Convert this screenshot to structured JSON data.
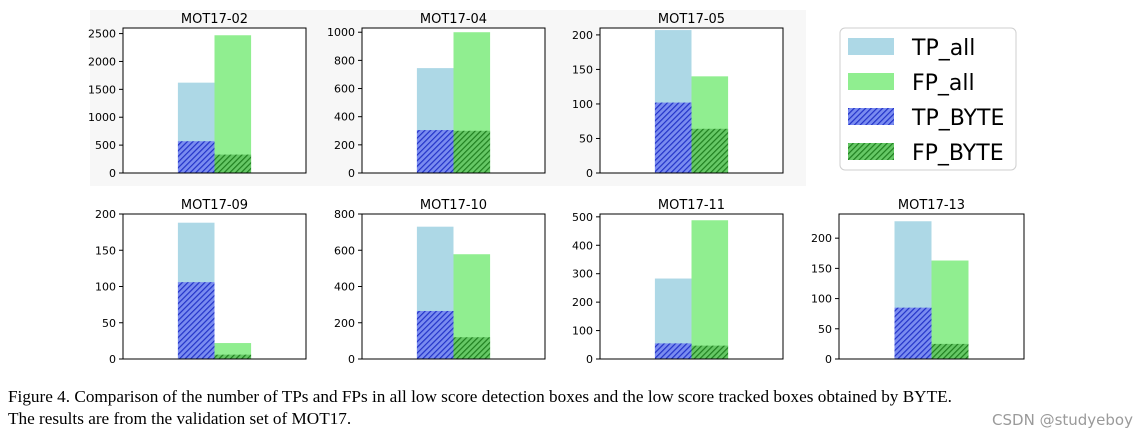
{
  "chart_data": [
    {
      "type": "bar",
      "title": "MOT17-02",
      "ylim": [
        0,
        2600
      ],
      "yticks": [
        0,
        500,
        1000,
        1500,
        2000,
        2500
      ],
      "series": [
        {
          "name": "TP_all",
          "values": [
            1620
          ]
        },
        {
          "name": "FP_all",
          "values": [
            2470
          ]
        },
        {
          "name": "TP_BYTE",
          "values": [
            570
          ]
        },
        {
          "name": "FP_BYTE",
          "values": [
            330
          ]
        }
      ]
    },
    {
      "type": "bar",
      "title": "MOT17-04",
      "ylim": [
        0,
        1030
      ],
      "yticks": [
        0,
        200,
        400,
        600,
        800,
        1000
      ],
      "series": [
        {
          "name": "TP_all",
          "values": [
            745
          ]
        },
        {
          "name": "FP_all",
          "values": [
            1000
          ]
        },
        {
          "name": "TP_BYTE",
          "values": [
            305
          ]
        },
        {
          "name": "FP_BYTE",
          "values": [
            300
          ]
        }
      ]
    },
    {
      "type": "bar",
      "title": "MOT17-05",
      "ylim": [
        0,
        210
      ],
      "yticks": [
        0,
        50,
        100,
        150,
        200
      ],
      "series": [
        {
          "name": "TP_all",
          "values": [
            207
          ]
        },
        {
          "name": "FP_all",
          "values": [
            140
          ]
        },
        {
          "name": "TP_BYTE",
          "values": [
            102
          ]
        },
        {
          "name": "FP_BYTE",
          "values": [
            64
          ]
        }
      ]
    },
    {
      "type": "bar",
      "title": "MOT17-09",
      "ylim": [
        0,
        200
      ],
      "yticks": [
        0,
        50,
        100,
        150,
        200
      ],
      "series": [
        {
          "name": "TP_all",
          "values": [
            188
          ]
        },
        {
          "name": "FP_all",
          "values": [
            22
          ]
        },
        {
          "name": "TP_BYTE",
          "values": [
            106
          ]
        },
        {
          "name": "FP_BYTE",
          "values": [
            6
          ]
        }
      ]
    },
    {
      "type": "bar",
      "title": "MOT17-10",
      "ylim": [
        0,
        800
      ],
      "yticks": [
        0,
        200,
        400,
        600,
        800
      ],
      "series": [
        {
          "name": "TP_all",
          "values": [
            730
          ]
        },
        {
          "name": "FP_all",
          "values": [
            578
          ]
        },
        {
          "name": "TP_BYTE",
          "values": [
            265
          ]
        },
        {
          "name": "FP_BYTE",
          "values": [
            120
          ]
        }
      ]
    },
    {
      "type": "bar",
      "title": "MOT17-11",
      "ylim": [
        0,
        510
      ],
      "yticks": [
        0,
        100,
        200,
        300,
        400,
        500
      ],
      "series": [
        {
          "name": "TP_all",
          "values": [
            283
          ]
        },
        {
          "name": "FP_all",
          "values": [
            488
          ]
        },
        {
          "name": "TP_BYTE",
          "values": [
            55
          ]
        },
        {
          "name": "FP_BYTE",
          "values": [
            47
          ]
        }
      ]
    },
    {
      "type": "bar",
      "title": "MOT17-13",
      "ylim": [
        0,
        240
      ],
      "yticks": [
        0,
        50,
        100,
        150,
        200
      ],
      "series": [
        {
          "name": "TP_all",
          "values": [
            228
          ]
        },
        {
          "name": "FP_all",
          "values": [
            163
          ]
        },
        {
          "name": "TP_BYTE",
          "values": [
            85
          ]
        },
        {
          "name": "FP_BYTE",
          "values": [
            25
          ]
        }
      ]
    }
  ],
  "legend": {
    "placement": "top-right",
    "entries": [
      {
        "label": "TP_all",
        "color": "#add8e6",
        "hatched": false
      },
      {
        "label": "FP_all",
        "color": "#90ee90",
        "hatched": false
      },
      {
        "label": "TP_BYTE",
        "color": "#3a4ee0",
        "hatched": true
      },
      {
        "label": "FP_BYTE",
        "color": "#2f9e2f",
        "hatched": true
      }
    ]
  },
  "colors": {
    "tp_all": "#add8e6",
    "fp_all": "#90ee90",
    "tp_byte": "#3a4ee0",
    "fp_byte": "#2f9e2f"
  },
  "caption": {
    "line1": "Figure 4. Comparison of the number of TPs and FPs in all low score detection boxes and the low score tracked boxes obtained by BYTE.",
    "line2": "The results are from the validation set of MOT17."
  },
  "watermark": "CSDN @studyeboy"
}
